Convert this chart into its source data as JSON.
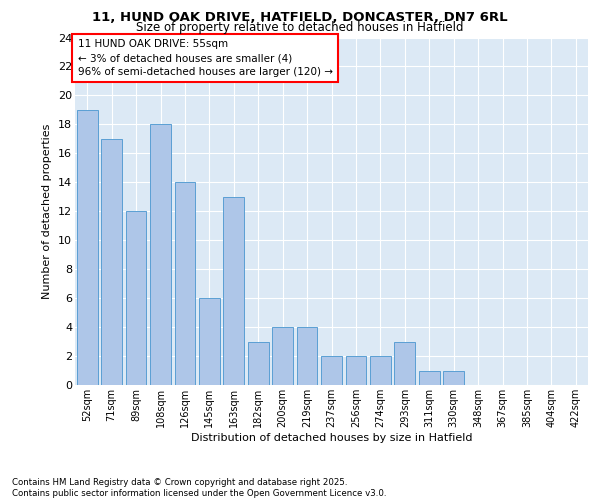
{
  "title1": "11, HUND OAK DRIVE, HATFIELD, DONCASTER, DN7 6RL",
  "title2": "Size of property relative to detached houses in Hatfield",
  "xlabel": "Distribution of detached houses by size in Hatfield",
  "ylabel": "Number of detached properties",
  "categories": [
    "52sqm",
    "71sqm",
    "89sqm",
    "108sqm",
    "126sqm",
    "145sqm",
    "163sqm",
    "182sqm",
    "200sqm",
    "219sqm",
    "237sqm",
    "256sqm",
    "274sqm",
    "293sqm",
    "311sqm",
    "330sqm",
    "348sqm",
    "367sqm",
    "385sqm",
    "404sqm",
    "422sqm"
  ],
  "values": [
    19,
    17,
    12,
    18,
    14,
    6,
    13,
    3,
    4,
    4,
    2,
    2,
    2,
    3,
    1,
    1,
    0,
    0,
    0,
    0,
    0
  ],
  "bar_color": "#aec6e8",
  "bar_edge_color": "#5a9fd4",
  "ylim": [
    0,
    24
  ],
  "yticks": [
    0,
    2,
    4,
    6,
    8,
    10,
    12,
    14,
    16,
    18,
    20,
    22,
    24
  ],
  "annotation_box_text": "11 HUND OAK DRIVE: 55sqm\n← 3% of detached houses are smaller (4)\n96% of semi-detached houses are larger (120) →",
  "annotation_box_color": "#ff0000",
  "footnote": "Contains HM Land Registry data © Crown copyright and database right 2025.\nContains public sector information licensed under the Open Government Licence v3.0.",
  "bg_color": "#dce9f5",
  "fig_bg_color": "#ffffff",
  "grid_color": "#ffffff"
}
